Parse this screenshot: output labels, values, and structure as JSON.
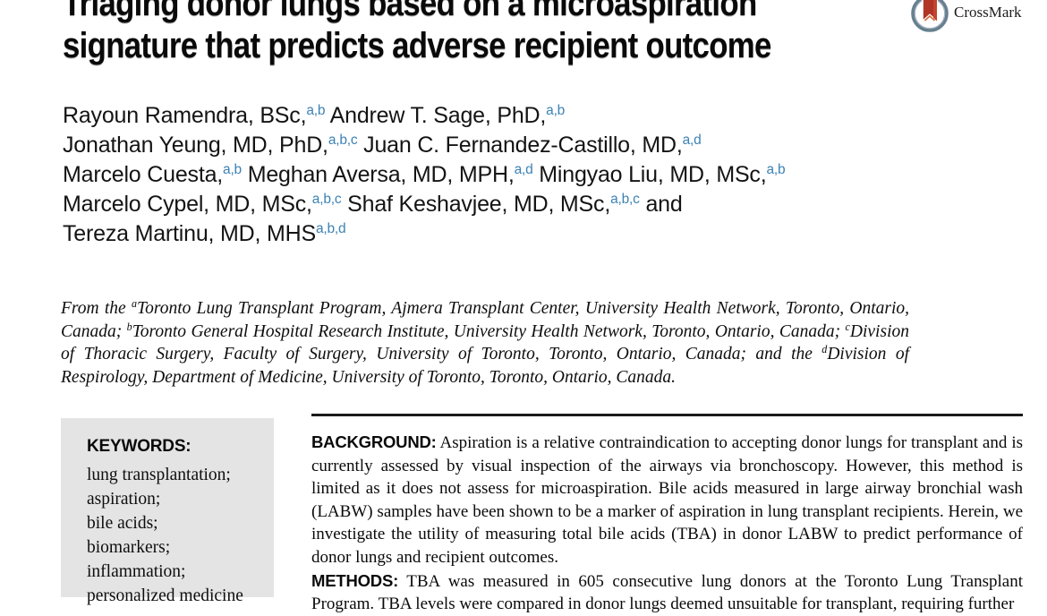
{
  "title": {
    "line1": "Triaging donor lungs based on a microaspiration",
    "line2": "signature that predicts adverse recipient outcome"
  },
  "crossmark": {
    "label": "CrossMark"
  },
  "colors": {
    "superscript_blue": "#3c82b4",
    "keywords_box_bg": "#e4e4e4",
    "rule_color": "#1a1a1a",
    "crossmark_ring": "#66808f",
    "crossmark_bookmark": "#b03527"
  },
  "authors": {
    "lines": [
      [
        {
          "t": "Rayoun Ramendra, BSc,"
        },
        {
          "sup": "a,b"
        },
        {
          "t": " Andrew T. Sage, PhD,"
        },
        {
          "sup": "a,b"
        }
      ],
      [
        {
          "t": "Jonathan Yeung, MD, PhD,"
        },
        {
          "sup": "a,b,c"
        },
        {
          "t": " Juan C. Fernandez-Castillo, MD,"
        },
        {
          "sup": "a,d"
        }
      ],
      [
        {
          "t": "Marcelo Cuesta,"
        },
        {
          "sup": "a,b"
        },
        {
          "t": " Meghan Aversa, MD, MPH,"
        },
        {
          "sup": "a,d"
        },
        {
          "t": " Mingyao Liu, MD, MSc,"
        },
        {
          "sup": "a,b"
        }
      ],
      [
        {
          "t": "Marcelo Cypel, MD, MSc,"
        },
        {
          "sup": "a,b,c"
        },
        {
          "t": " Shaf Keshavjee, MD, MSc,"
        },
        {
          "sup": "a,b,c"
        },
        {
          "t": " and"
        }
      ],
      [
        {
          "t": "Tereza Martinu, MD, MHS"
        },
        {
          "sup": "a,b,d"
        }
      ]
    ]
  },
  "affiliations": {
    "segments": [
      {
        "t": "From the "
      },
      {
        "sup": "a"
      },
      {
        "t": "Toronto Lung Transplant Program, Ajmera Transplant Center, University Health Network, Toronto, Ontario, Canada; "
      },
      {
        "sup": "b"
      },
      {
        "t": "Toronto General Hospital Research Institute, University Health Network, Toronto, Ontario, Canada; "
      },
      {
        "sup": "c"
      },
      {
        "t": "Division of Thoracic Surgery, Faculty of Surgery, University of Toronto, Toronto, Ontario, Canada; and the "
      },
      {
        "sup": "d"
      },
      {
        "t": "Division of Respirology, Department of Medicine, University of Toronto, Toronto, Ontario, Canada."
      }
    ]
  },
  "keywords": {
    "heading": "KEYWORDS:",
    "items": [
      "lung transplantation;",
      "aspiration;",
      "bile acids;",
      "biomarkers;",
      "inflammation;",
      "personalized medicine"
    ]
  },
  "abstract": {
    "sections": [
      {
        "label": "BACKGROUND:",
        "text": " Aspiration is a relative contraindication to accepting donor lungs for transplant and is currently assessed by visual inspection of the airways via bronchoscopy. However, this method is limited as it does not assess for microaspiration. Bile acids measured in large airway bronchial wash (LABW) samples have been shown to be a marker of aspiration in lung transplant recipients. Herein, we investigate the utility of measuring total bile acids (TBA) in donor LABW to predict performance of donor lungs and recipient outcomes."
      },
      {
        "label": "METHODS:",
        "text": " TBA was measured in 605 consecutive lung donors at the Toronto Lung Transplant Program. TBA levels were compared in donor lungs deemed unsuitable for transplant, requiring further"
      }
    ]
  }
}
